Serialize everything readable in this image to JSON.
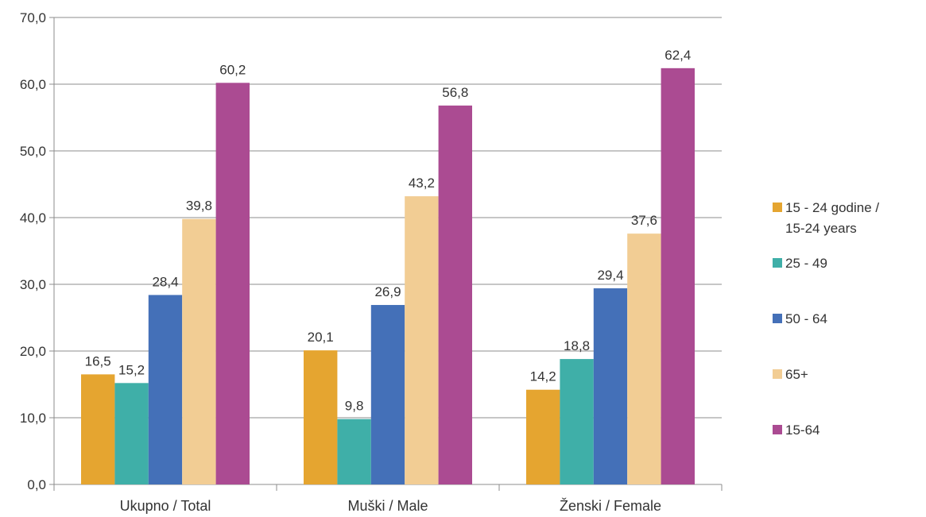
{
  "chart_data": {
    "type": "bar",
    "title": "",
    "xlabel": "",
    "ylabel": "",
    "ylim": [
      0,
      70
    ],
    "yticks": [
      "0,0",
      "10,0",
      "20,0",
      "30,0",
      "40,0",
      "50,0",
      "60,0",
      "70,0"
    ],
    "grid": true,
    "legend_position": "right",
    "categories": [
      "Ukupno / Total",
      "Muški / Male",
      "Ženski / Female"
    ],
    "series": [
      {
        "name": "15 - 24 godine / 15-24 years",
        "legend_lines": [
          "15 - 24 godine /",
          "15-24 years"
        ],
        "color": "#E5A530",
        "values": [
          16.5,
          20.1,
          14.2
        ],
        "labels": [
          "16,5",
          "20,1",
          "14,2"
        ]
      },
      {
        "name": "25 - 49",
        "legend_lines": [
          "25 - 49"
        ],
        "color": "#3FAFA8",
        "values": [
          15.2,
          9.8,
          18.8
        ],
        "labels": [
          "15,2",
          "9,8",
          "18,8"
        ]
      },
      {
        "name": "50 - 64",
        "legend_lines": [
          "50 - 64"
        ],
        "color": "#4470B8",
        "values": [
          28.4,
          26.9,
          29.4
        ],
        "labels": [
          "28,4",
          "26,9",
          "29,4"
        ]
      },
      {
        "name": "65+",
        "legend_lines": [
          "65+"
        ],
        "color": "#F2CD94",
        "values": [
          39.8,
          43.2,
          37.6
        ],
        "labels": [
          "39,8",
          "43,2",
          "37,6"
        ]
      },
      {
        "name": "15-64",
        "legend_lines": [
          "15-64"
        ],
        "color": "#AB4B92",
        "values": [
          60.2,
          56.8,
          62.4
        ],
        "labels": [
          "60,2",
          "56,8",
          "62,4"
        ]
      }
    ]
  }
}
